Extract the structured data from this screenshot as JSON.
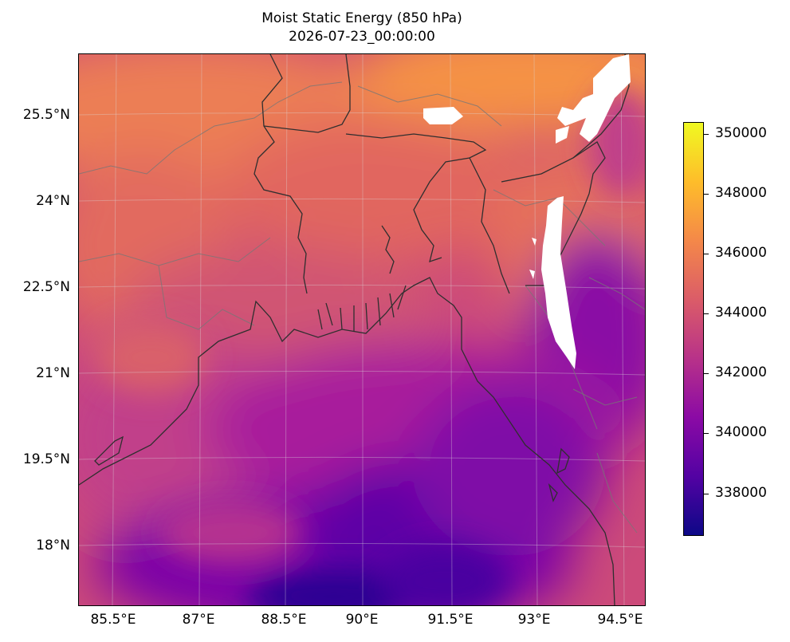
{
  "title": {
    "line1": "Moist Static Energy (850 hPa)",
    "line2": "2026-07-23_00:00:00"
  },
  "lat_labels": [
    "25.5°N",
    "24°N",
    "22.5°N",
    "21°N",
    "19.5°N",
    "18°N"
  ],
  "lon_labels": [
    "85.5°E",
    "87°E",
    "88.5°E",
    "90°E",
    "91.5°E",
    "93°E",
    "94.5°E"
  ],
  "colorbar": {
    "colormap": "plasma",
    "min": 336600,
    "max": 350400,
    "tick_labels": [
      "350000",
      "348000",
      "346000",
      "344000",
      "342000",
      "340000",
      "338000"
    ],
    "colors": [
      "#0d0887",
      "#5302a3",
      "#8b0aa5",
      "#b83289",
      "#db5c68",
      "#f48849",
      "#febd2a",
      "#f0f921"
    ]
  },
  "map": {
    "field": "moist static energy",
    "level": "850 hPa",
    "extent": {
      "lon_min": 84.9,
      "lon_max": 94.9,
      "lat_min": 17.0,
      "lat_max": 26.5
    },
    "masked_color": "#ffffff",
    "coastline_color": "#333333",
    "border_color": "#777777"
  }
}
